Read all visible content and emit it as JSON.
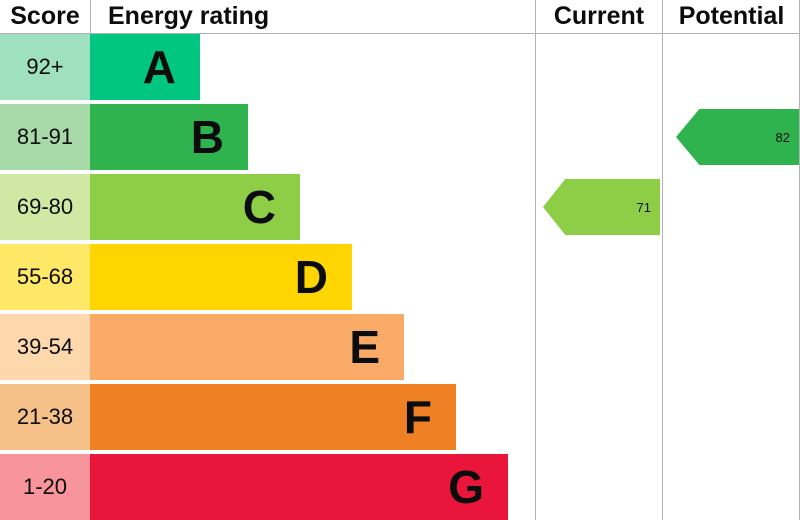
{
  "header": {
    "score_label": "Score",
    "energy_rating_label": "Energy rating",
    "current_label": "Current",
    "potential_label": "Potential"
  },
  "bands": [
    {
      "score": "92+",
      "letter": "A",
      "bar_color": "#00c681",
      "score_bg": "#9fe0bf"
    },
    {
      "score": "81-91",
      "letter": "B",
      "bar_color": "#2eb34e",
      "score_bg": "#a8d9a8"
    },
    {
      "score": "69-80",
      "letter": "C",
      "bar_color": "#8dce46",
      "score_bg": "#cfe9a4"
    },
    {
      "score": "55-68",
      "letter": "D",
      "bar_color": "#ffd500",
      "score_bg": "#ffe866"
    },
    {
      "score": "39-54",
      "letter": "E",
      "bar_color": "#f9aa66",
      "score_bg": "#fdd8ad"
    },
    {
      "score": "21-38",
      "letter": "F",
      "bar_color": "#ef8023",
      "score_bg": "#f5c189"
    },
    {
      "score": "1-20",
      "letter": "G",
      "bar_color": "#e9153b",
      "score_bg": "#f7949c"
    }
  ],
  "current": {
    "label": "Current",
    "value": "71",
    "band": "C",
    "arrow_color": "#8dce46"
  },
  "potential": {
    "label": "Potential",
    "value": "82",
    "band": "B",
    "arrow_color": "#2eb34e"
  },
  "chart_data": {
    "type": "bar",
    "title": "Energy rating",
    "orientation": "horizontal",
    "categories": [
      "A",
      "B",
      "C",
      "D",
      "E",
      "F",
      "G"
    ],
    "score_ranges": [
      "92+",
      "81-91",
      "69-80",
      "55-68",
      "39-54",
      "21-38",
      "1-20"
    ],
    "relative_bar_widths": [
      1,
      2,
      3,
      4,
      5,
      6,
      7
    ],
    "band_colors": [
      "#00c681",
      "#2eb34e",
      "#8dce46",
      "#ffd500",
      "#f9aa66",
      "#ef8023",
      "#e9153b"
    ],
    "markers": [
      {
        "label": "Current",
        "value": 71,
        "band": "C",
        "color": "#8dce46"
      },
      {
        "label": "Potential",
        "value": 82,
        "band": "B",
        "color": "#2eb34e"
      }
    ],
    "legend_position": "none",
    "grid": false
  }
}
